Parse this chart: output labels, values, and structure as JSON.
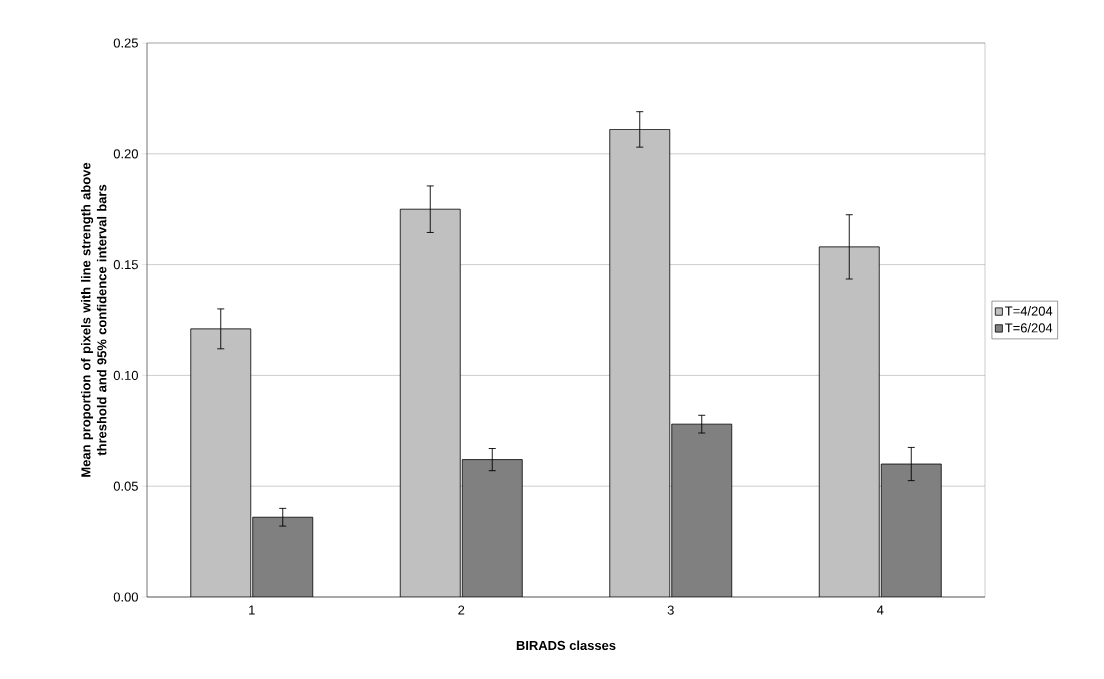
{
  "chart_data": {
    "type": "bar",
    "xlabel": "BIRADS classes",
    "ylabel": "Mean proportion of pixels with line strength above threshold and 95% confidence interval bars",
    "categories": [
      "1",
      "2",
      "3",
      "4"
    ],
    "series": [
      {
        "name": "T=4/204",
        "color": "#c0c0c0",
        "values": [
          0.121,
          0.175,
          0.211,
          0.158
        ],
        "errors": [
          0.009,
          0.0105,
          0.008,
          0.0145
        ]
      },
      {
        "name": "T=6/204",
        "color": "#808080",
        "values": [
          0.036,
          0.062,
          0.078,
          0.06
        ],
        "errors": [
          0.004,
          0.005,
          0.004,
          0.0075
        ]
      }
    ],
    "ylim": [
      0,
      0.25
    ],
    "yticks": [
      {
        "value": 0,
        "label": "0.00"
      },
      {
        "value": 0.05,
        "label": "0.05"
      },
      {
        "value": 0.1,
        "label": "0.10"
      },
      {
        "value": 0.15,
        "label": "0.15"
      },
      {
        "value": 0.2,
        "label": "0.20"
      },
      {
        "value": 0.25,
        "label": "0.25"
      }
    ],
    "grid": "y",
    "legend": "right"
  }
}
